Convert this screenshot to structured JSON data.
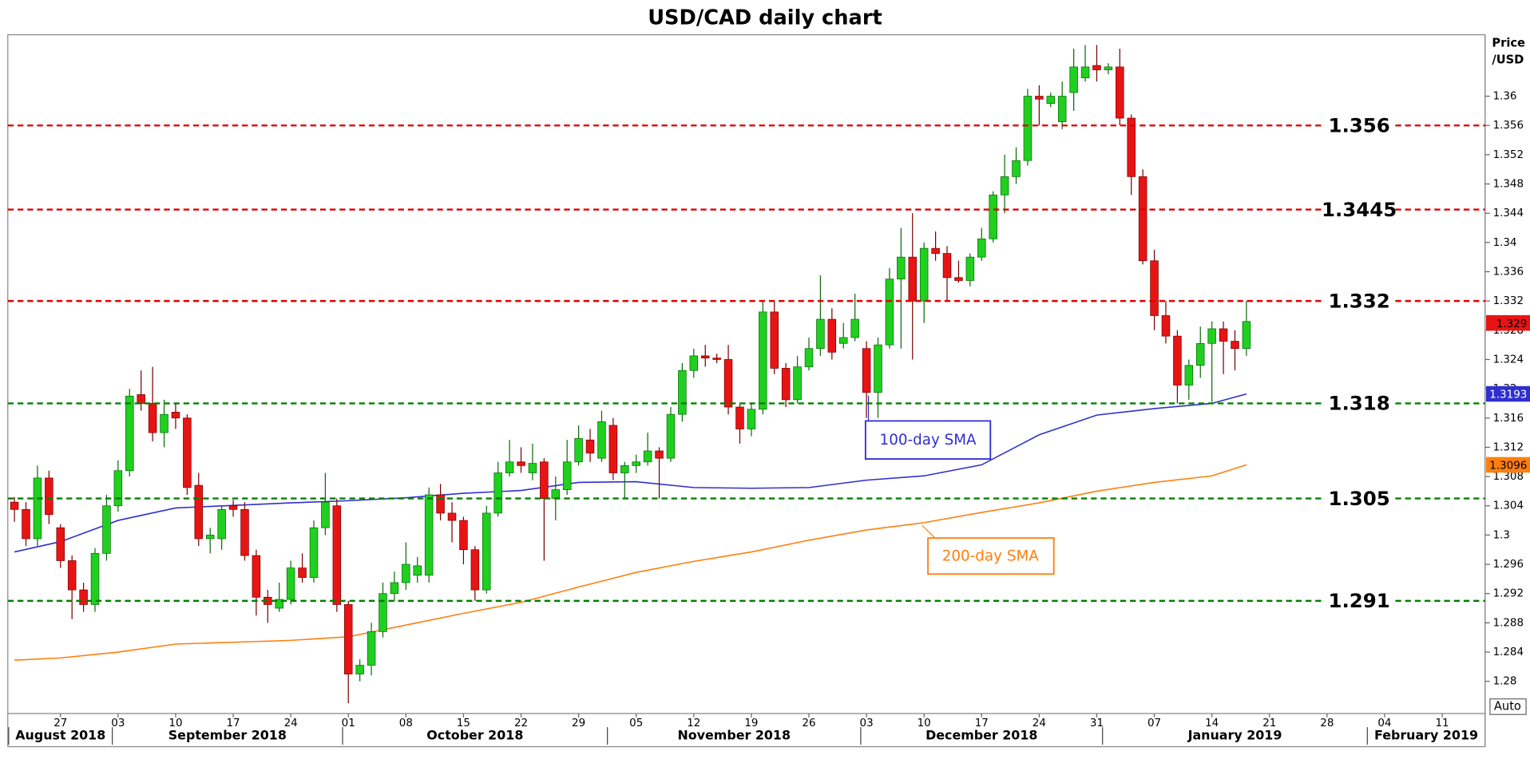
{
  "chart_data": {
    "type": "candlestick",
    "title": "USD/CAD daily chart",
    "y_label_lines": [
      "Price",
      "/USD"
    ],
    "auto_button": "Auto",
    "up_color": "#1fd01f",
    "down_color": "#e81414",
    "ylim": [
      1.2756,
      1.3684
    ],
    "yticks": [
      1.28,
      1.284,
      1.288,
      1.292,
      1.296,
      1.3,
      1.304,
      1.308,
      1.312,
      1.316,
      1.32,
      1.324,
      1.328,
      1.332,
      1.336,
      1.34,
      1.344,
      1.348,
      1.352,
      1.356,
      1.36
    ],
    "xticks": [
      {
        "value": "2018-08-27",
        "label": "27"
      },
      {
        "value": "2018-09-03",
        "label": "03"
      },
      {
        "value": "2018-09-10",
        "label": "10"
      },
      {
        "value": "2018-09-17",
        "label": "17"
      },
      {
        "value": "2018-09-24",
        "label": "24"
      },
      {
        "value": "2018-10-01",
        "label": "01"
      },
      {
        "value": "2018-10-08",
        "label": "08"
      },
      {
        "value": "2018-10-15",
        "label": "15"
      },
      {
        "value": "2018-10-22",
        "label": "22"
      },
      {
        "value": "2018-10-29",
        "label": "29"
      },
      {
        "value": "2018-11-05",
        "label": "05"
      },
      {
        "value": "2018-11-12",
        "label": "12"
      },
      {
        "value": "2018-11-19",
        "label": "19"
      },
      {
        "value": "2018-11-26",
        "label": "26"
      },
      {
        "value": "2018-12-03",
        "label": "03"
      },
      {
        "value": "2018-12-10",
        "label": "10"
      },
      {
        "value": "2018-12-17",
        "label": "17"
      },
      {
        "value": "2018-12-24",
        "label": "24"
      },
      {
        "value": "2018-12-31",
        "label": "31"
      },
      {
        "value": "2019-01-07",
        "label": "07"
      },
      {
        "value": "2019-01-14",
        "label": "14"
      },
      {
        "value": "2019-01-21",
        "label": "21"
      },
      {
        "value": "2019-01-28",
        "label": "28"
      },
      {
        "value": "2019-02-04",
        "label": "04"
      },
      {
        "value": "2019-02-11",
        "label": "11"
      }
    ],
    "month_labels": [
      {
        "value": "2018-08",
        "label": "August 2018"
      },
      {
        "value": "2018-09",
        "label": "September 2018"
      },
      {
        "value": "2018-10",
        "label": "October 2018"
      },
      {
        "value": "2018-11",
        "label": "November 2018"
      },
      {
        "value": "2018-12",
        "label": "December 2018"
      },
      {
        "value": "2019-01",
        "label": "January 2019"
      },
      {
        "value": "2019-02",
        "label": "February 2019"
      }
    ],
    "dates": [
      "2018-08-21",
      "2018-08-22",
      "2018-08-23",
      "2018-08-24",
      "2018-08-27",
      "2018-08-28",
      "2018-08-29",
      "2018-08-30",
      "2018-08-31",
      "2018-09-03",
      "2018-09-04",
      "2018-09-05",
      "2018-09-06",
      "2018-09-07",
      "2018-09-10",
      "2018-09-11",
      "2018-09-12",
      "2018-09-13",
      "2018-09-14",
      "2018-09-17",
      "2018-09-18",
      "2018-09-19",
      "2018-09-20",
      "2018-09-21",
      "2018-09-24",
      "2018-09-25",
      "2018-09-26",
      "2018-09-27",
      "2018-09-28",
      "2018-10-01",
      "2018-10-02",
      "2018-10-03",
      "2018-10-04",
      "2018-10-05",
      "2018-10-08",
      "2018-10-09",
      "2018-10-10",
      "2018-10-11",
      "2018-10-12",
      "2018-10-15",
      "2018-10-16",
      "2018-10-17",
      "2018-10-18",
      "2018-10-19",
      "2018-10-22",
      "2018-10-23",
      "2018-10-24",
      "2018-10-25",
      "2018-10-26",
      "2018-10-29",
      "2018-10-30",
      "2018-10-31",
      "2018-11-01",
      "2018-11-02",
      "2018-11-05",
      "2018-11-06",
      "2018-11-07",
      "2018-11-08",
      "2018-11-09",
      "2018-11-12",
      "2018-11-13",
      "2018-11-14",
      "2018-11-15",
      "2018-11-16",
      "2018-11-19",
      "2018-11-20",
      "2018-11-21",
      "2018-11-22",
      "2018-11-23",
      "2018-11-26",
      "2018-11-27",
      "2018-11-28",
      "2018-11-29",
      "2018-11-30",
      "2018-12-03",
      "2018-12-04",
      "2018-12-05",
      "2018-12-06",
      "2018-12-07",
      "2018-12-10",
      "2018-12-11",
      "2018-12-12",
      "2018-12-13",
      "2018-12-14",
      "2018-12-17",
      "2018-12-18",
      "2018-12-19",
      "2018-12-20",
      "2018-12-21",
      "2018-12-24",
      "2018-12-25",
      "2018-12-26",
      "2018-12-27",
      "2018-12-28",
      "2018-12-31",
      "2019-01-01",
      "2019-01-02",
      "2019-01-03",
      "2019-01-04",
      "2019-01-07",
      "2019-01-08",
      "2019-01-09",
      "2019-01-10",
      "2019-01-11",
      "2019-01-14",
      "2019-01-15",
      "2019-01-16",
      "2019-01-17"
    ],
    "open": [
      1.3045,
      1.3035,
      1.2995,
      1.3078,
      1.301,
      1.2965,
      1.2925,
      1.2905,
      1.2975,
      1.304,
      1.3088,
      1.3192,
      1.318,
      1.314,
      1.3168,
      1.316,
      1.3068,
      1.2995,
      1.2995,
      1.304,
      1.3035,
      1.2972,
      1.2915,
      1.29,
      1.2912,
      1.2955,
      1.2942,
      1.301,
      1.304,
      1.2905,
      1.281,
      1.2822,
      1.2868,
      1.292,
      1.2935,
      1.2945,
      1.2945,
      1.3055,
      1.303,
      1.302,
      1.298,
      1.2925,
      1.303,
      1.3085,
      1.31,
      1.3085,
      1.31,
      1.305,
      1.3062,
      1.31,
      1.313,
      1.3105,
      1.315,
      1.3085,
      1.3095,
      1.31,
      1.3115,
      1.3105,
      1.3165,
      1.3225,
      1.3245,
      1.3242,
      1.324,
      1.3175,
      1.3145,
      1.3172,
      1.3305,
      1.3228,
      1.3185,
      1.323,
      1.3255,
      1.3295,
      1.3262,
      1.327,
      1.3255,
      1.3195,
      1.326,
      1.335,
      1.338,
      1.332,
      1.3392,
      1.3385,
      1.3352,
      1.3348,
      1.338,
      1.3405,
      1.3465,
      1.349,
      1.3512,
      1.36,
      1.359,
      1.3565,
      1.3605,
      1.3625,
      1.3642,
      1.3636,
      1.364,
      1.357,
      1.349,
      1.3375,
      1.33,
      1.3272,
      1.3205,
      1.3232,
      1.3262,
      1.3282,
      1.3265,
      1.3255
    ],
    "high": [
      1.3052,
      1.3045,
      1.3095,
      1.3088,
      1.3015,
      1.2972,
      1.2935,
      1.2982,
      1.3055,
      1.3102,
      1.32,
      1.3225,
      1.323,
      1.3185,
      1.318,
      1.3165,
      1.3085,
      1.301,
      1.304,
      1.3048,
      1.3045,
      1.298,
      1.2925,
      1.2935,
      1.2965,
      1.2975,
      1.302,
      1.3085,
      1.305,
      1.291,
      1.283,
      1.288,
      1.2935,
      1.295,
      1.299,
      1.297,
      1.3065,
      1.307,
      1.3045,
      1.3025,
      1.2985,
      1.304,
      1.31,
      1.313,
      1.312,
      1.3125,
      1.3105,
      1.308,
      1.313,
      1.315,
      1.3145,
      1.317,
      1.316,
      1.31,
      1.311,
      1.314,
      1.312,
      1.3175,
      1.3235,
      1.3255,
      1.326,
      1.3248,
      1.326,
      1.318,
      1.318,
      1.332,
      1.332,
      1.3235,
      1.3245,
      1.327,
      1.3355,
      1.331,
      1.329,
      1.333,
      1.3265,
      1.327,
      1.3365,
      1.342,
      1.344,
      1.34,
      1.3415,
      1.3395,
      1.3375,
      1.3385,
      1.342,
      1.347,
      1.352,
      1.353,
      1.361,
      1.3615,
      1.3605,
      1.362,
      1.3665,
      1.367,
      1.367,
      1.3645,
      1.3665,
      1.3575,
      1.35,
      1.339,
      1.332,
      1.328,
      1.324,
      1.3285,
      1.3292,
      1.3292,
      1.328,
      1.332
    ],
    "low": [
      1.3018,
      1.2985,
      1.2985,
      1.3015,
      1.2955,
      1.2885,
      1.2895,
      1.2895,
      1.2965,
      1.3032,
      1.308,
      1.317,
      1.3128,
      1.312,
      1.3145,
      1.3055,
      1.2985,
      1.2975,
      1.298,
      1.3025,
      1.2965,
      1.289,
      1.288,
      1.2895,
      1.2905,
      1.2935,
      1.2935,
      1.3,
      1.2895,
      1.277,
      1.28,
      1.2808,
      1.286,
      1.291,
      1.2925,
      1.2935,
      1.2935,
      1.302,
      1.299,
      1.296,
      1.291,
      1.292,
      1.3025,
      1.308,
      1.3085,
      1.3075,
      1.2965,
      1.302,
      1.3055,
      1.3095,
      1.31,
      1.31,
      1.3075,
      1.305,
      1.3085,
      1.3095,
      1.305,
      1.31,
      1.3155,
      1.3215,
      1.323,
      1.3235,
      1.3165,
      1.3125,
      1.3135,
      1.3165,
      1.322,
      1.3175,
      1.318,
      1.3225,
      1.3245,
      1.324,
      1.3255,
      1.3265,
      1.316,
      1.316,
      1.3255,
      1.3255,
      1.324,
      1.329,
      1.3375,
      1.332,
      1.3345,
      1.334,
      1.3375,
      1.34,
      1.344,
      1.348,
      1.3505,
      1.356,
      1.3585,
      1.3555,
      1.358,
      1.362,
      1.362,
      1.363,
      1.356,
      1.3465,
      1.337,
      1.328,
      1.3262,
      1.318,
      1.3185,
      1.3215,
      1.3182,
      1.322,
      1.3225,
      1.3245
    ],
    "close": [
      1.3035,
      1.2995,
      1.3078,
      1.3028,
      1.2965,
      1.2925,
      1.2905,
      1.2975,
      1.304,
      1.3088,
      1.319,
      1.318,
      1.314,
      1.3165,
      1.316,
      1.3065,
      1.2995,
      1.3,
      1.3035,
      1.3035,
      1.2972,
      1.2915,
      1.2905,
      1.2912,
      1.2955,
      1.2942,
      1.301,
      1.3045,
      1.2905,
      1.281,
      1.2822,
      1.2868,
      1.292,
      1.2935,
      1.296,
      1.2958,
      1.3055,
      1.303,
      1.302,
      1.298,
      1.2925,
      1.303,
      1.3085,
      1.31,
      1.3095,
      1.3098,
      1.305,
      1.3062,
      1.31,
      1.3132,
      1.3112,
      1.3155,
      1.3085,
      1.3095,
      1.31,
      1.3115,
      1.3105,
      1.3165,
      1.3225,
      1.3245,
      1.3242,
      1.324,
      1.3175,
      1.3145,
      1.3172,
      1.3305,
      1.3228,
      1.3185,
      1.323,
      1.3255,
      1.3295,
      1.325,
      1.327,
      1.3295,
      1.3195,
      1.326,
      1.335,
      1.338,
      1.332,
      1.3392,
      1.3385,
      1.3352,
      1.3348,
      1.338,
      1.3405,
      1.3465,
      1.349,
      1.3512,
      1.36,
      1.3596,
      1.36,
      1.36,
      1.364,
      1.364,
      1.3636,
      1.364,
      1.357,
      1.349,
      1.3375,
      1.33,
      1.3272,
      1.3205,
      1.3232,
      1.3262,
      1.3282,
      1.3265,
      1.3255,
      1.3292
    ],
    "last_price": 1.329,
    "last_price_color": "#e81414",
    "sma": [
      {
        "name": "100-day SMA",
        "color": "#2f2fd0",
        "x": [
          "2018-08-21",
          "2018-08-27",
          "2018-09-03",
          "2018-09-10",
          "2018-09-24",
          "2018-10-01",
          "2018-10-08",
          "2018-10-15",
          "2018-10-22",
          "2018-10-29",
          "2018-11-05",
          "2018-11-12",
          "2018-11-19",
          "2018-11-26",
          "2018-12-03",
          "2018-12-10",
          "2018-12-17",
          "2018-12-24",
          "2018-12-31",
          "2019-01-07",
          "2019-01-14",
          "2019-01-17"
        ],
        "values": [
          1.2977,
          1.2991,
          1.302,
          1.3037,
          1.3044,
          1.3047,
          1.3051,
          1.3057,
          1.3061,
          1.3072,
          1.3073,
          1.3065,
          1.3064,
          1.3065,
          1.3075,
          1.3081,
          1.3096,
          1.3137,
          1.3164,
          1.3173,
          1.318,
          1.3193
        ],
        "last_value": 1.3193
      },
      {
        "name": "200-day SMA",
        "color": "#ff7f0e",
        "x": [
          "2018-08-21",
          "2018-08-27",
          "2018-09-03",
          "2018-09-10",
          "2018-09-24",
          "2018-10-01",
          "2018-10-08",
          "2018-10-15",
          "2018-10-22",
          "2018-10-29",
          "2018-11-05",
          "2018-11-12",
          "2018-11-19",
          "2018-11-26",
          "2018-12-03",
          "2018-12-10",
          "2018-12-17",
          "2018-12-24",
          "2018-12-31",
          "2019-01-07",
          "2019-01-14",
          "2019-01-17"
        ],
        "values": [
          1.2829,
          1.2832,
          1.284,
          1.2851,
          1.2856,
          1.2861,
          1.2877,
          1.2893,
          1.2908,
          1.2929,
          1.2949,
          1.2964,
          1.2977,
          1.2993,
          1.3007,
          1.3017,
          1.3031,
          1.3044,
          1.306,
          1.3072,
          1.3081,
          1.3096
        ],
        "last_value": 1.3096
      }
    ],
    "levels": [
      {
        "value": 1.356,
        "color": "#e00000"
      },
      {
        "value": 1.3445,
        "color": "#e00000"
      },
      {
        "value": 1.332,
        "color": "#e00000"
      },
      {
        "value": 1.318,
        "color": "#008000"
      },
      {
        "value": 1.305,
        "color": "#008000"
      },
      {
        "value": 1.291,
        "color": "#008000"
      }
    ]
  }
}
